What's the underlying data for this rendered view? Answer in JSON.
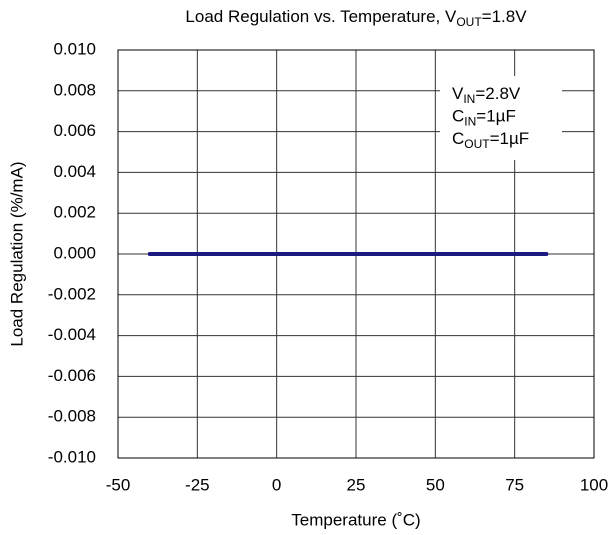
{
  "chart_data": {
    "type": "line",
    "title": [
      "Load Regulation vs. Temperature, V",
      "OUT",
      "=1.8V"
    ],
    "x_label": "Temperature (˚C)",
    "y_label": "Load Regulation (%/mA)",
    "annotation": [
      [
        "V",
        "IN",
        "=2.8V"
      ],
      [
        "C",
        "IN",
        "=1µF"
      ],
      [
        "C",
        "OUT",
        "=1µF"
      ]
    ],
    "x": [
      -40,
      -25,
      0,
      25,
      50,
      75,
      85
    ],
    "series": [
      {
        "color": "#1a1a80",
        "values": [
          0,
          0,
          0,
          0,
          0,
          0,
          0
        ]
      }
    ],
    "xlim": [
      -50,
      100
    ],
    "xticks": [
      -50,
      -25,
      0,
      25,
      50,
      75,
      100
    ],
    "ylim": [
      -0.01,
      0.01
    ],
    "yticks": [
      {
        "value": -0.01,
        "label": "-0.010"
      },
      {
        "value": -0.008,
        "label": "-0.008"
      },
      {
        "value": -0.006,
        "label": "-0.006"
      },
      {
        "value": -0.004,
        "label": "-0.004"
      },
      {
        "value": -0.002,
        "label": "-0.002"
      },
      {
        "value": 0,
        "label": "0.000"
      },
      {
        "value": 0.002,
        "label": "0.002"
      },
      {
        "value": 0.004,
        "label": "0.004"
      },
      {
        "value": 0.006,
        "label": "0.006"
      },
      {
        "value": 0.008,
        "label": "0.008"
      },
      {
        "value": 0.01,
        "label": "0.010"
      }
    ],
    "grid": true
  }
}
